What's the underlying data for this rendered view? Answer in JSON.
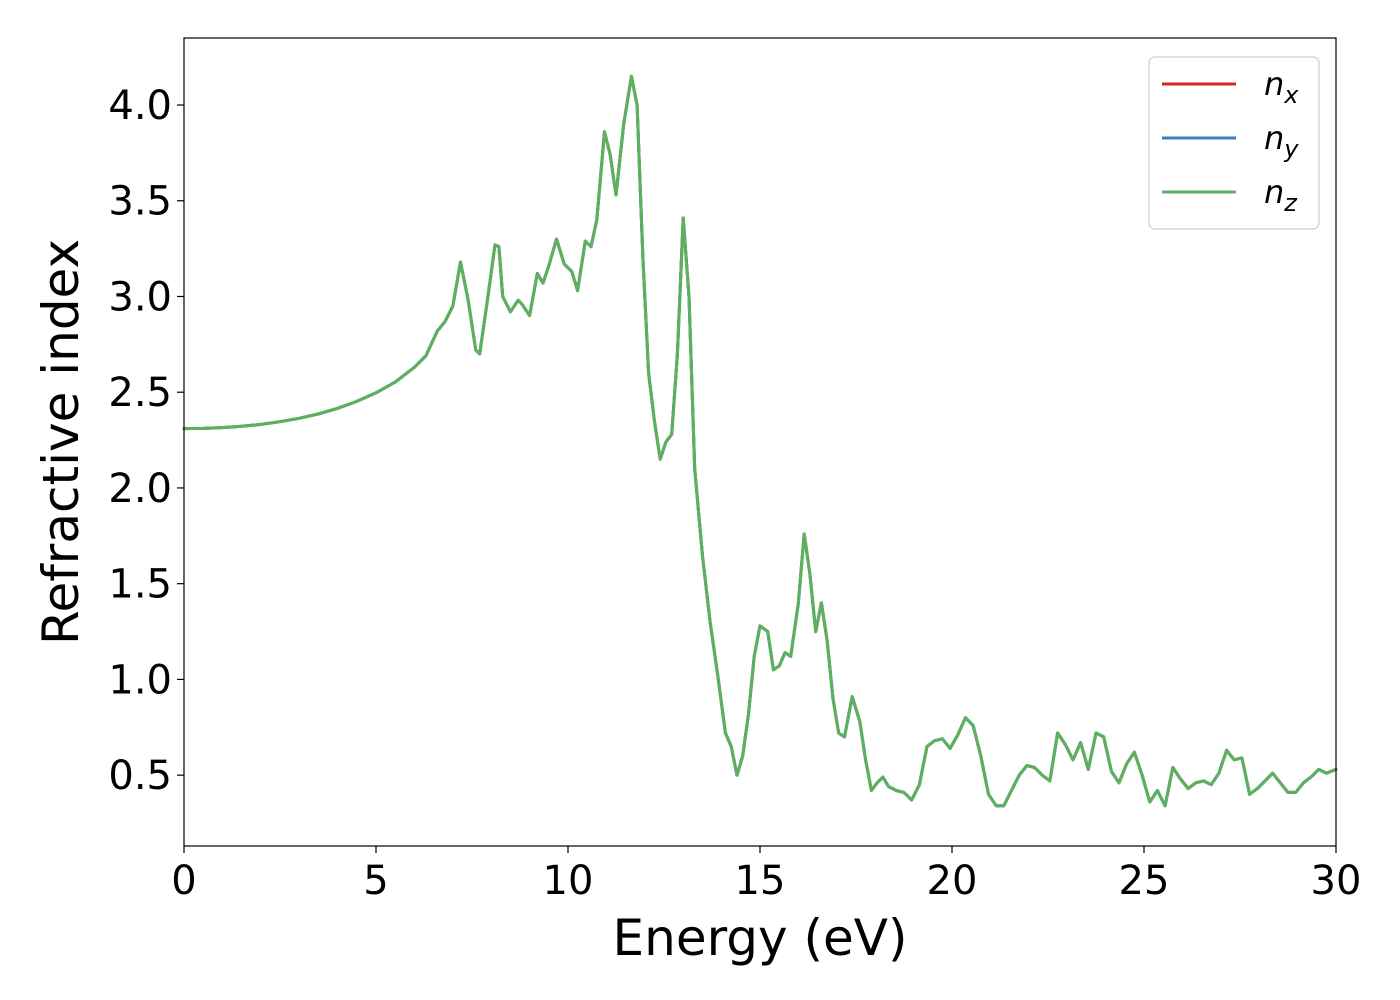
{
  "chart_data": {
    "type": "line",
    "title": "",
    "xlabel": "Energy (eV)",
    "ylabel": "Refractive index",
    "xlim": [
      0,
      30
    ],
    "ylim": [
      0.13,
      4.35
    ],
    "xticks": [
      "0",
      "5",
      "10",
      "15",
      "20",
      "25",
      "30"
    ],
    "yticks": [
      "0.5",
      "1.0",
      "1.5",
      "2.0",
      "2.5",
      "3.0",
      "3.5",
      "4.0"
    ],
    "grid": false,
    "legend_position": "top-right",
    "legend": [
      {
        "base": "n",
        "sub": "x",
        "color": "#d62728"
      },
      {
        "base": "n",
        "sub": "y",
        "color": "#3b7fc4"
      },
      {
        "base": "n",
        "sub": "z",
        "color": "#5cb25c"
      }
    ],
    "x": [
      0,
      0.5,
      1,
      1.5,
      2,
      2.5,
      3,
      3.5,
      4,
      4.5,
      5,
      5.5,
      6,
      6.3,
      6.6,
      6.8,
      7.0,
      7.2,
      7.4,
      7.6,
      7.7,
      7.9,
      8.1,
      8.2,
      8.3,
      8.5,
      8.7,
      8.8,
      9.0,
      9.2,
      9.35,
      9.5,
      9.7,
      9.9,
      10.1,
      10.25,
      10.45,
      10.6,
      10.75,
      10.95,
      11.1,
      11.25,
      11.45,
      11.65,
      11.8,
      11.95,
      12.1,
      12.25,
      12.4,
      12.55,
      12.7,
      12.85,
      13.0,
      13.15,
      13.3,
      13.5,
      13.7,
      13.9,
      14.1,
      14.25,
      14.4,
      14.55,
      14.7,
      14.85,
      15.0,
      15.2,
      15.35,
      15.5,
      15.65,
      15.8,
      16.0,
      16.15,
      16.3,
      16.45,
      16.6,
      16.75,
      16.9,
      17.05,
      17.2,
      17.4,
      17.6,
      17.75,
      17.9,
      18.05,
      18.2,
      18.35,
      18.55,
      18.75,
      18.95,
      19.15,
      19.35,
      19.55,
      19.75,
      19.95,
      20.15,
      20.35,
      20.55,
      20.75,
      20.95,
      21.15,
      21.35,
      21.55,
      21.75,
      21.95,
      22.15,
      22.35,
      22.55,
      22.75,
      22.95,
      23.15,
      23.35,
      23.55,
      23.75,
      23.95,
      24.15,
      24.35,
      24.55,
      24.75,
      24.95,
      25.15,
      25.35,
      25.55,
      25.75,
      25.95,
      26.15,
      26.35,
      26.55,
      26.75,
      26.95,
      27.15,
      27.35,
      27.55,
      27.75,
      27.95,
      28.15,
      28.35,
      28.55,
      28.75,
      28.95,
      29.15,
      29.35,
      29.55,
      29.75,
      30.0
    ],
    "series": [
      {
        "name": "n_x",
        "color": "#d62728",
        "values": [
          2.31,
          2.311,
          2.315,
          2.322,
          2.332,
          2.346,
          2.364,
          2.387,
          2.416,
          2.452,
          2.497,
          2.553,
          2.63,
          2.69,
          2.82,
          2.87,
          2.95,
          3.18,
          2.98,
          2.72,
          2.7,
          2.98,
          3.27,
          3.26,
          3.0,
          2.92,
          2.98,
          2.96,
          2.9,
          3.12,
          3.07,
          3.16,
          3.3,
          3.17,
          3.13,
          3.03,
          3.29,
          3.26,
          3.4,
          3.86,
          3.74,
          3.53,
          3.9,
          4.15,
          4.0,
          3.2,
          2.6,
          2.35,
          2.15,
          2.24,
          2.28,
          2.7,
          3.41,
          3.0,
          2.1,
          1.65,
          1.3,
          1.02,
          0.72,
          0.65,
          0.5,
          0.6,
          0.82,
          1.12,
          1.28,
          1.25,
          1.05,
          1.07,
          1.14,
          1.12,
          1.4,
          1.76,
          1.55,
          1.25,
          1.4,
          1.2,
          0.9,
          0.72,
          0.7,
          0.91,
          0.78,
          0.58,
          0.42,
          0.46,
          0.49,
          0.44,
          0.42,
          0.41,
          0.37,
          0.45,
          0.65,
          0.68,
          0.69,
          0.64,
          0.71,
          0.8,
          0.76,
          0.6,
          0.4,
          0.34,
          0.34,
          0.42,
          0.5,
          0.55,
          0.54,
          0.5,
          0.47,
          0.72,
          0.66,
          0.58,
          0.67,
          0.53,
          0.72,
          0.7,
          0.52,
          0.46,
          0.56,
          0.62,
          0.5,
          0.36,
          0.42,
          0.34,
          0.54,
          0.48,
          0.43,
          0.46,
          0.47,
          0.45,
          0.51,
          0.63,
          0.58,
          0.59,
          0.4,
          0.43,
          0.47,
          0.51,
          0.46,
          0.41,
          0.41,
          0.46,
          0.49,
          0.53,
          0.51,
          0.53
        ]
      },
      {
        "name": "n_y",
        "color": "#3b7fc4",
        "values": [
          2.31,
          2.311,
          2.315,
          2.322,
          2.332,
          2.346,
          2.364,
          2.387,
          2.416,
          2.452,
          2.497,
          2.553,
          2.63,
          2.69,
          2.82,
          2.87,
          2.95,
          3.18,
          2.98,
          2.72,
          2.7,
          2.98,
          3.27,
          3.26,
          3.0,
          2.92,
          2.98,
          2.96,
          2.9,
          3.12,
          3.07,
          3.16,
          3.3,
          3.17,
          3.13,
          3.03,
          3.29,
          3.26,
          3.4,
          3.86,
          3.74,
          3.53,
          3.9,
          4.15,
          4.0,
          3.2,
          2.6,
          2.35,
          2.15,
          2.24,
          2.28,
          2.7,
          3.41,
          3.0,
          2.1,
          1.65,
          1.3,
          1.02,
          0.72,
          0.65,
          0.5,
          0.6,
          0.82,
          1.12,
          1.28,
          1.25,
          1.05,
          1.07,
          1.14,
          1.12,
          1.4,
          1.76,
          1.55,
          1.25,
          1.4,
          1.2,
          0.9,
          0.72,
          0.7,
          0.91,
          0.78,
          0.58,
          0.42,
          0.46,
          0.49,
          0.44,
          0.42,
          0.41,
          0.37,
          0.45,
          0.65,
          0.68,
          0.69,
          0.64,
          0.71,
          0.8,
          0.76,
          0.6,
          0.4,
          0.34,
          0.34,
          0.42,
          0.5,
          0.55,
          0.54,
          0.5,
          0.47,
          0.72,
          0.66,
          0.58,
          0.67,
          0.53,
          0.72,
          0.7,
          0.52,
          0.46,
          0.56,
          0.62,
          0.5,
          0.36,
          0.42,
          0.34,
          0.54,
          0.48,
          0.43,
          0.46,
          0.47,
          0.45,
          0.51,
          0.63,
          0.58,
          0.59,
          0.4,
          0.43,
          0.47,
          0.51,
          0.46,
          0.41,
          0.41,
          0.46,
          0.49,
          0.53,
          0.51,
          0.53
        ]
      },
      {
        "name": "n_z",
        "color": "#5cb25c",
        "values": [
          2.31,
          2.311,
          2.315,
          2.322,
          2.332,
          2.346,
          2.364,
          2.387,
          2.416,
          2.452,
          2.497,
          2.553,
          2.63,
          2.69,
          2.82,
          2.87,
          2.95,
          3.18,
          2.98,
          2.72,
          2.7,
          2.98,
          3.27,
          3.26,
          3.0,
          2.92,
          2.98,
          2.96,
          2.9,
          3.12,
          3.07,
          3.16,
          3.3,
          3.17,
          3.13,
          3.03,
          3.29,
          3.26,
          3.4,
          3.86,
          3.74,
          3.53,
          3.9,
          4.15,
          4.0,
          3.2,
          2.6,
          2.35,
          2.15,
          2.24,
          2.28,
          2.7,
          3.41,
          3.0,
          2.1,
          1.65,
          1.3,
          1.02,
          0.72,
          0.65,
          0.5,
          0.6,
          0.82,
          1.12,
          1.28,
          1.25,
          1.05,
          1.07,
          1.14,
          1.12,
          1.4,
          1.76,
          1.55,
          1.25,
          1.4,
          1.2,
          0.9,
          0.72,
          0.7,
          0.91,
          0.78,
          0.58,
          0.42,
          0.46,
          0.49,
          0.44,
          0.42,
          0.41,
          0.37,
          0.45,
          0.65,
          0.68,
          0.69,
          0.64,
          0.71,
          0.8,
          0.76,
          0.6,
          0.4,
          0.34,
          0.34,
          0.42,
          0.5,
          0.55,
          0.54,
          0.5,
          0.47,
          0.72,
          0.66,
          0.58,
          0.67,
          0.53,
          0.72,
          0.7,
          0.52,
          0.46,
          0.56,
          0.62,
          0.5,
          0.36,
          0.42,
          0.34,
          0.54,
          0.48,
          0.43,
          0.46,
          0.47,
          0.45,
          0.51,
          0.63,
          0.58,
          0.59,
          0.4,
          0.43,
          0.47,
          0.51,
          0.46,
          0.41,
          0.41,
          0.46,
          0.49,
          0.53,
          0.51,
          0.53
        ]
      }
    ]
  }
}
